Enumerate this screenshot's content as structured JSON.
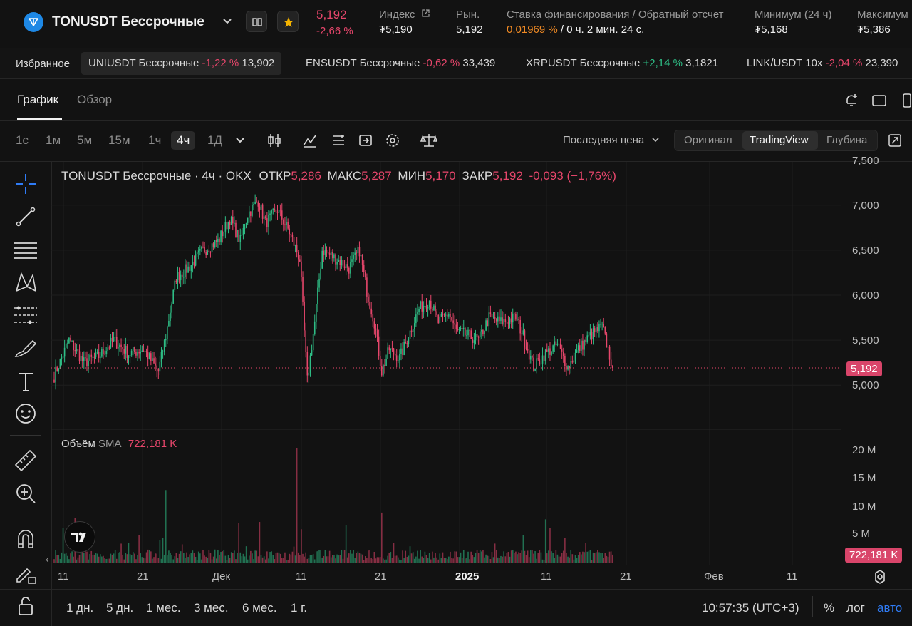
{
  "header": {
    "symbol": "TONUSDT Бессрочные",
    "price": "5,192",
    "change": "-2,66 %",
    "stats": [
      {
        "label": "Индекс",
        "value": "₮5,190"
      },
      {
        "label": "Рын.",
        "value": "5,192"
      },
      {
        "label": "Ставка финансирования / Обратный отсчет",
        "rate": "0,01969 %",
        "countdown": " / 0 ч. 2 мин. 24 с."
      },
      {
        "label": "Минимум (24 ч)",
        "value": "₮5,168"
      },
      {
        "label": "Максимум",
        "value": "₮5,386"
      }
    ]
  },
  "favorites": {
    "label": "Избранное",
    "items": [
      {
        "name": "UNIUSDT Бессрочные",
        "change": "-1,22 %",
        "price": "13,902"
      },
      {
        "name": "ENSUSDT Бессрочные",
        "change": "-0,62 %",
        "price": "33,439"
      },
      {
        "name": "XRPUSDT Бессрочные",
        "change": "+2,14 %",
        "price": "3,1821"
      },
      {
        "name": "LINK/USDT 10x",
        "change": "-2,04 %",
        "price": "23,390"
      }
    ]
  },
  "tabs": [
    "График",
    "Обзор"
  ],
  "timeframes": [
    "1с",
    "1м",
    "5м",
    "15м",
    "1ч",
    "4ч",
    "1Д"
  ],
  "price_type": "Последняя цена",
  "views": [
    "Оригинал",
    "TradingView",
    "Глубина"
  ],
  "legend": {
    "title": "TONUSDT Бессрочные · 4ч · OKX",
    "open_label": "ОТКР",
    "open": "5,286",
    "high_label": "МАКС",
    "high": "5,287",
    "low_label": "МИН",
    "low": "5,170",
    "close_label": "ЗАКР",
    "close": "5,192",
    "change": "-0,093 (−1,76%)"
  },
  "volume": {
    "label": "Объём",
    "sma_label": "SMA",
    "value": "722,181 K"
  },
  "price_axis": [
    "7,500",
    "7,000",
    "6,500",
    "6,000",
    "5,500",
    "5,000"
  ],
  "last_price_badge": "5,192",
  "volume_axis": [
    "20 M",
    "15 M",
    "10 M",
    "5 M"
  ],
  "volume_badge": "722,181 K",
  "time_axis": [
    "11",
    "21",
    "Дек",
    "11",
    "21",
    "2025",
    "11",
    "21",
    "Фев",
    "11"
  ],
  "ranges": [
    "1 дн.",
    "5 дн.",
    "1 мес.",
    "3 мес.",
    "6 мес.",
    "1 г."
  ],
  "clock": "10:57:35 (UTC+3)",
  "scale_options": [
    "%",
    "лог",
    "авто"
  ],
  "colors": {
    "up": "#2ebd85",
    "down": "#e6466b",
    "accent": "#2f7cf6",
    "funding": "#f08a24"
  },
  "chart_data": {
    "type": "candlestick",
    "timeframe": "4ч",
    "price_range": [
      4700,
      7600
    ],
    "volume_range": [
      0,
      22000000
    ],
    "anchors": [
      [
        0,
        5100
      ],
      [
        10,
        5500
      ],
      [
        20,
        5250
      ],
      [
        30,
        5320
      ],
      [
        40,
        5500
      ],
      [
        50,
        5350
      ],
      [
        60,
        5400
      ],
      [
        70,
        5150
      ],
      [
        75,
        5550
      ],
      [
        82,
        6200
      ],
      [
        90,
        6300
      ],
      [
        100,
        6500
      ],
      [
        110,
        6600
      ],
      [
        118,
        6850
      ],
      [
        125,
        6600
      ],
      [
        130,
        6900
      ],
      [
        137,
        7050
      ],
      [
        142,
        6800
      ],
      [
        150,
        6950
      ],
      [
        158,
        6700
      ],
      [
        165,
        6400
      ],
      [
        170,
        5050
      ],
      [
        175,
        5700
      ],
      [
        180,
        6500
      ],
      [
        190,
        6400
      ],
      [
        198,
        6300
      ],
      [
        205,
        6500
      ],
      [
        210,
        6050
      ],
      [
        215,
        5700
      ],
      [
        220,
        5150
      ],
      [
        225,
        5400
      ],
      [
        232,
        5300
      ],
      [
        238,
        5550
      ],
      [
        245,
        5850
      ],
      [
        252,
        5950
      ],
      [
        258,
        5700
      ],
      [
        265,
        5800
      ],
      [
        270,
        5600
      ],
      [
        278,
        5550
      ],
      [
        285,
        5500
      ],
      [
        292,
        5750
      ],
      [
        300,
        5700
      ],
      [
        310,
        5750
      ],
      [
        315,
        5550
      ],
      [
        322,
        5200
      ],
      [
        330,
        5350
      ],
      [
        338,
        5450
      ],
      [
        345,
        5200
      ],
      [
        352,
        5400
      ],
      [
        360,
        5550
      ],
      [
        368,
        5650
      ],
      [
        372,
        5400
      ],
      [
        375,
        5192
      ]
    ]
  }
}
